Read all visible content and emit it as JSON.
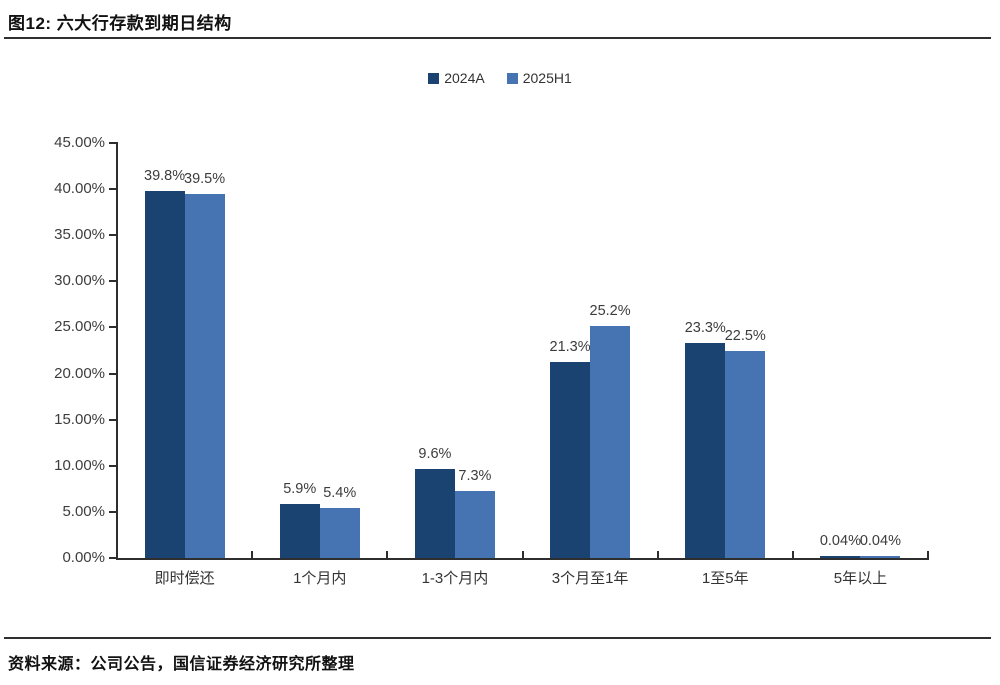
{
  "figure": {
    "title": "图12: 六大行存款到期日结构",
    "source_label": "资料来源：公司公告，国信证券经济研究所整理"
  },
  "chart_data": {
    "type": "bar",
    "title": "六大行存款到期日结构",
    "categories": [
      "即时偿还",
      "1个月内",
      "1-3个月内",
      "3个月至1年",
      "1至5年",
      "5年以上"
    ],
    "series": [
      {
        "name": "2024A",
        "color": "#1B4371",
        "values": [
          39.8,
          5.9,
          9.6,
          21.3,
          23.3,
          0.04
        ],
        "data_labels": [
          "39.8%",
          "5.9%",
          "9.6%",
          "21.3%",
          "23.3%",
          "0.04%"
        ]
      },
      {
        "name": "2025H1",
        "color": "#4674B2",
        "values": [
          39.5,
          5.4,
          7.3,
          25.2,
          22.5,
          0.04
        ],
        "data_labels": [
          "39.5%",
          "5.4%",
          "7.3%",
          "25.2%",
          "22.5%",
          "0.04%"
        ]
      }
    ],
    "xlabel": "",
    "ylabel": "",
    "ylim": [
      0,
      45
    ],
    "ytick_labels": [
      "0.00%",
      "5.00%",
      "10.00%",
      "15.00%",
      "20.00%",
      "25.00%",
      "30.00%",
      "35.00%",
      "40.00%",
      "45.00%"
    ],
    "ytick_values": [
      0,
      5,
      10,
      15,
      20,
      25,
      30,
      35,
      40,
      45
    ],
    "grid": false,
    "legend_position": "top-center"
  }
}
